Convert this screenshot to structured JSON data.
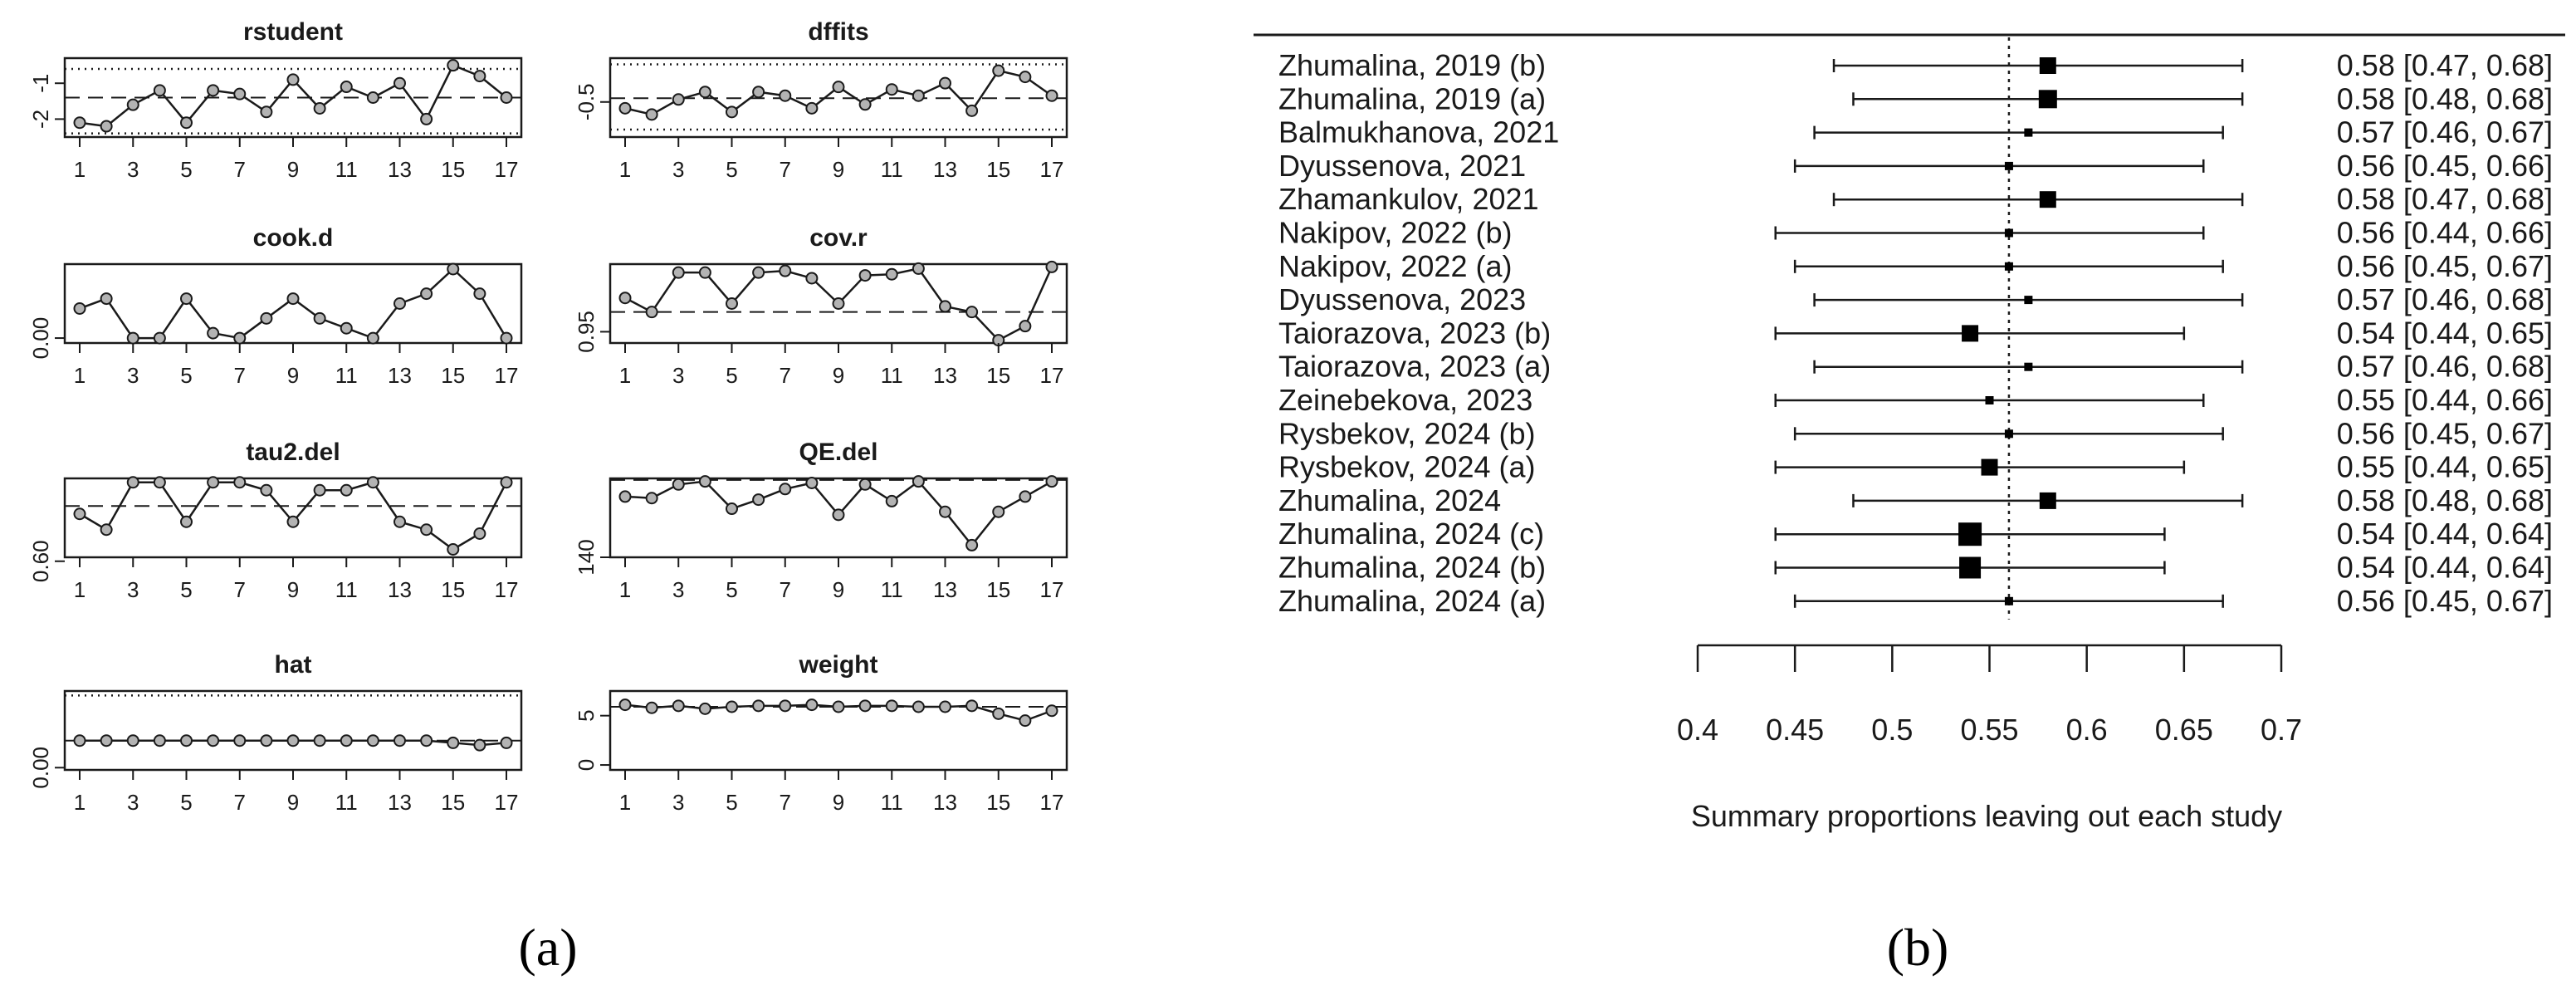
{
  "panel_labels": {
    "a": "(a)",
    "b": "(b)"
  },
  "colors": {
    "ink": "#1a1a1a",
    "marker_fill": "#b3b3b3",
    "background": "#ffffff"
  },
  "chart_data": [
    {
      "panel": "a",
      "type": "line",
      "title": "rstudent",
      "xlabel": "",
      "ylabel": "",
      "x": [
        1,
        2,
        3,
        4,
        5,
        6,
        7,
        8,
        9,
        10,
        11,
        12,
        13,
        14,
        15,
        16,
        17
      ],
      "xticks": [
        "1",
        "3",
        "5",
        "7",
        "9",
        "11",
        "13",
        "15",
        "17"
      ],
      "yticks": [
        "-2",
        "-1"
      ],
      "yticks_values": [
        -2,
        -1
      ],
      "values": [
        -2.1,
        -2.2,
        -1.6,
        -1.2,
        -2.1,
        -1.2,
        -1.3,
        -1.8,
        -0.9,
        -1.7,
        -1.1,
        -1.4,
        -1.0,
        -2.0,
        -0.5,
        -0.8,
        -1.4
      ],
      "ylim": [
        -2.5,
        -0.3
      ],
      "reference_line": -1.4,
      "bound_lines": [
        -2.4,
        -0.6
      ]
    },
    {
      "panel": "a",
      "type": "line",
      "title": "dffits",
      "x": [
        1,
        2,
        3,
        4,
        5,
        6,
        7,
        8,
        9,
        10,
        11,
        12,
        13,
        14,
        15,
        16,
        17
      ],
      "xticks": [
        "1",
        "3",
        "5",
        "7",
        "9",
        "11",
        "13",
        "15",
        "17"
      ],
      "yticks": [
        "-0.5"
      ],
      "yticks_values": [
        -0.5
      ],
      "values": [
        -0.55,
        -0.6,
        -0.48,
        -0.42,
        -0.58,
        -0.42,
        -0.45,
        -0.55,
        -0.38,
        -0.52,
        -0.4,
        -0.45,
        -0.35,
        -0.57,
        -0.25,
        -0.3,
        -0.45
      ],
      "ylim": [
        -0.78,
        -0.15
      ],
      "reference_line": -0.47,
      "bound_lines": [
        -0.72,
        -0.2
      ]
    },
    {
      "panel": "a",
      "type": "line",
      "title": "cook.d",
      "x": [
        1,
        2,
        3,
        4,
        5,
        6,
        7,
        8,
        9,
        10,
        11,
        12,
        13,
        14,
        15,
        16,
        17
      ],
      "xticks": [
        "1",
        "3",
        "5",
        "7",
        "9",
        "11",
        "13",
        "15",
        "17"
      ],
      "yticks": [
        "0.00"
      ],
      "yticks_values": [
        0.0
      ],
      "values": [
        0.03,
        0.04,
        0.0,
        0.0,
        0.04,
        0.005,
        0.0,
        0.02,
        0.04,
        0.02,
        0.01,
        0.0,
        0.035,
        0.045,
        0.07,
        0.045,
        0.0
      ],
      "ylim": [
        -0.005,
        0.075
      ]
    },
    {
      "panel": "a",
      "type": "line",
      "title": "cov.r",
      "x": [
        1,
        2,
        3,
        4,
        5,
        6,
        7,
        8,
        9,
        10,
        11,
        12,
        13,
        14,
        15,
        16,
        17
      ],
      "xticks": [
        "1",
        "3",
        "5",
        "7",
        "9",
        "11",
        "13",
        "15",
        "17"
      ],
      "yticks": [
        "0.95"
      ],
      "yticks_values": [
        0.95
      ],
      "values": [
        1.01,
        0.985,
        1.055,
        1.055,
        1.0,
        1.055,
        1.058,
        1.045,
        1.0,
        1.05,
        1.052,
        1.062,
        0.995,
        0.985,
        0.935,
        0.96,
        1.065
      ],
      "ylim": [
        0.93,
        1.07
      ],
      "reference_line": 0.985
    },
    {
      "panel": "a",
      "type": "line",
      "title": "tau2.del",
      "x": [
        1,
        2,
        3,
        4,
        5,
        6,
        7,
        8,
        9,
        10,
        11,
        12,
        13,
        14,
        15,
        16,
        17
      ],
      "xticks": [
        "1",
        "3",
        "5",
        "7",
        "9",
        "11",
        "13",
        "15",
        "17"
      ],
      "yticks": [
        "0.60"
      ],
      "yticks_values": [
        0.6
      ],
      "values": [
        0.66,
        0.64,
        0.7,
        0.7,
        0.65,
        0.7,
        0.7,
        0.69,
        0.65,
        0.69,
        0.69,
        0.7,
        0.65,
        0.64,
        0.615,
        0.635,
        0.7
      ],
      "ylim": [
        0.605,
        0.705
      ],
      "reference_line": 0.67
    },
    {
      "panel": "a",
      "type": "line",
      "title": "QE.del",
      "x": [
        1,
        2,
        3,
        4,
        5,
        6,
        7,
        8,
        9,
        10,
        11,
        12,
        13,
        14,
        15,
        16,
        17
      ],
      "xticks": [
        "1",
        "3",
        "5",
        "7",
        "9",
        "11",
        "13",
        "15",
        "17"
      ],
      "yticks": [
        "140"
      ],
      "yticks_values": [
        140
      ],
      "values": [
        180,
        179,
        188,
        190,
        172,
        178,
        185,
        189,
        168,
        188,
        177,
        190,
        170,
        148,
        170,
        180,
        190
      ],
      "ylim": [
        140,
        192
      ],
      "reference_line": 191
    },
    {
      "panel": "a",
      "type": "line",
      "title": "hat",
      "x": [
        1,
        2,
        3,
        4,
        5,
        6,
        7,
        8,
        9,
        10,
        11,
        12,
        13,
        14,
        15,
        16,
        17
      ],
      "xticks": [
        "1",
        "3",
        "5",
        "7",
        "9",
        "11",
        "13",
        "15",
        "17"
      ],
      "yticks": [
        "0.00"
      ],
      "yticks_values": [
        0.0
      ],
      "values": [
        0.06,
        0.06,
        0.06,
        0.06,
        0.06,
        0.06,
        0.06,
        0.06,
        0.06,
        0.06,
        0.06,
        0.06,
        0.06,
        0.06,
        0.055,
        0.05,
        0.055
      ],
      "ylim": [
        -0.005,
        0.17
      ],
      "reference_line": 0.06,
      "bound_lines": [
        0.16
      ]
    },
    {
      "panel": "a",
      "type": "line",
      "title": "weight",
      "x": [
        1,
        2,
        3,
        4,
        5,
        6,
        7,
        8,
        9,
        10,
        11,
        12,
        13,
        14,
        15,
        16,
        17
      ],
      "xticks": [
        "1",
        "3",
        "5",
        "7",
        "9",
        "11",
        "13",
        "15",
        "17"
      ],
      "yticks": [
        "0",
        "5"
      ],
      "yticks_values": [
        0,
        5
      ],
      "values": [
        6.1,
        5.8,
        6.0,
        5.7,
        5.9,
        6.0,
        6.0,
        6.1,
        5.9,
        6.0,
        6.0,
        5.9,
        5.9,
        6.0,
        5.2,
        4.5,
        5.5
      ],
      "ylim": [
        -0.5,
        7.5
      ],
      "reference_line": 5.9
    },
    {
      "panel": "b",
      "type": "forest",
      "xlabel": "Summary proportions leaving out each study",
      "xticks": [
        "0.4",
        "0.45",
        "0.5",
        "0.55",
        "0.6",
        "0.65",
        "0.7"
      ],
      "xticks_values": [
        0.4,
        0.45,
        0.5,
        0.55,
        0.6,
        0.65,
        0.7
      ],
      "xlim": [
        0.4,
        0.7
      ],
      "reference_line": 0.56,
      "studies": [
        {
          "label": "Zhumalina, 2019 (b)",
          "est": 0.58,
          "lo": 0.47,
          "hi": 0.68,
          "ci_text": "0.58 [0.47, 0.68]",
          "marker_size": 10
        },
        {
          "label": "Zhumalina, 2019 (a)",
          "est": 0.58,
          "lo": 0.48,
          "hi": 0.68,
          "ci_text": "0.58 [0.48, 0.68]",
          "marker_size": 11
        },
        {
          "label": "Balmukhanova, 2021",
          "est": 0.57,
          "lo": 0.46,
          "hi": 0.67,
          "ci_text": "0.57 [0.46, 0.67]",
          "marker_size": 5
        },
        {
          "label": "Dyussenova, 2021",
          "est": 0.56,
          "lo": 0.45,
          "hi": 0.66,
          "ci_text": "0.56 [0.45, 0.66]",
          "marker_size": 5
        },
        {
          "label": "Zhamankulov, 2021",
          "est": 0.58,
          "lo": 0.47,
          "hi": 0.68,
          "ci_text": "0.58 [0.47, 0.68]",
          "marker_size": 10
        },
        {
          "label": "Nakipov, 2022 (b)",
          "est": 0.56,
          "lo": 0.44,
          "hi": 0.66,
          "ci_text": "0.56 [0.44, 0.66]",
          "marker_size": 5
        },
        {
          "label": "Nakipov, 2022 (a)",
          "est": 0.56,
          "lo": 0.45,
          "hi": 0.67,
          "ci_text": "0.56 [0.45, 0.67]",
          "marker_size": 5
        },
        {
          "label": "Dyussenova, 2023",
          "est": 0.57,
          "lo": 0.46,
          "hi": 0.68,
          "ci_text": "0.57 [0.46, 0.68]",
          "marker_size": 5
        },
        {
          "label": "Taiorazova, 2023 (b)",
          "est": 0.54,
          "lo": 0.44,
          "hi": 0.65,
          "ci_text": "0.54 [0.44, 0.65]",
          "marker_size": 10
        },
        {
          "label": "Taiorazova, 2023 (a)",
          "est": 0.57,
          "lo": 0.46,
          "hi": 0.68,
          "ci_text": "0.57 [0.46, 0.68]",
          "marker_size": 5
        },
        {
          "label": "Zeinebekova, 2023",
          "est": 0.55,
          "lo": 0.44,
          "hi": 0.66,
          "ci_text": "0.55 [0.44, 0.66]",
          "marker_size": 5
        },
        {
          "label": "Rysbekov, 2024 (b)",
          "est": 0.56,
          "lo": 0.45,
          "hi": 0.67,
          "ci_text": "0.56 [0.45, 0.67]",
          "marker_size": 5
        },
        {
          "label": "Rysbekov, 2024 (a)",
          "est": 0.55,
          "lo": 0.44,
          "hi": 0.65,
          "ci_text": "0.55 [0.44, 0.65]",
          "marker_size": 10
        },
        {
          "label": "Zhumalina, 2024",
          "est": 0.58,
          "lo": 0.48,
          "hi": 0.68,
          "ci_text": "0.58 [0.48, 0.68]",
          "marker_size": 10
        },
        {
          "label": "Zhumalina, 2024 (c)",
          "est": 0.54,
          "lo": 0.44,
          "hi": 0.64,
          "ci_text": "0.54 [0.44, 0.64]",
          "marker_size": 14
        },
        {
          "label": "Zhumalina, 2024 (b)",
          "est": 0.54,
          "lo": 0.44,
          "hi": 0.64,
          "ci_text": "0.54 [0.44, 0.64]",
          "marker_size": 13
        },
        {
          "label": "Zhumalina, 2024 (a)",
          "est": 0.56,
          "lo": 0.45,
          "hi": 0.67,
          "ci_text": "0.56 [0.45, 0.67]",
          "marker_size": 5
        }
      ]
    }
  ]
}
